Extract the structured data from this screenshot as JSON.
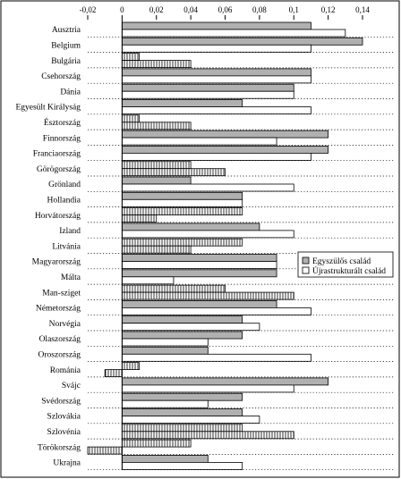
{
  "chart_data": {
    "type": "bar",
    "orientation": "horizontal",
    "title": "",
    "xlabel": "",
    "ylabel": "",
    "xlim": [
      -0.02,
      0.14
    ],
    "x_ticks": [
      -0.02,
      0,
      0.02,
      0.04,
      0.06,
      0.08,
      0.1,
      0.12,
      0.14
    ],
    "x_tick_labels": [
      "-0,02",
      "0",
      "0,02",
      "0,04",
      "0,06",
      "0,08",
      "0,1",
      "0,12",
      "0,14"
    ],
    "x_axis_position": "top",
    "grid": false,
    "legend_position": "right",
    "categories": [
      "Ausztria",
      "Belgium",
      "Bulgária",
      "Csehország",
      "Dánia",
      "Egyesült Királyság",
      "Észtország",
      "Finnország",
      "Franciaország",
      "Görögország",
      "Grönland",
      "Hollandia",
      "Horvátország",
      "Izland",
      "Litvánia",
      "Magyarország",
      "Málta",
      "Man-sziget",
      "Németország",
      "Norvégia",
      "Olaszország",
      "Oroszország",
      "Románia",
      "Svájc",
      "Svédország",
      "Szlovákia",
      "Szlovénia",
      "Törökország",
      "Ukrajna"
    ],
    "series": [
      {
        "name": "Egyszülős család",
        "fill": "#b0b0b0",
        "values": [
          0.11,
          0.14,
          0.01,
          0.11,
          0.1,
          0.07,
          0.01,
          0.12,
          0.12,
          0.04,
          0.04,
          0.07,
          0.07,
          0.08,
          0.07,
          0.09,
          0.09,
          0.06,
          0.09,
          0.07,
          0.07,
          0.05,
          0.01,
          0.12,
          0.07,
          0.07,
          0.07,
          0.04,
          0.05
        ]
      },
      {
        "name": "Újrastrukturált család",
        "fill": "#ffffff",
        "values": [
          0.13,
          0.11,
          0.04,
          0.11,
          0.1,
          0.11,
          0.04,
          0.09,
          0.11,
          0.06,
          0.1,
          0.07,
          0.02,
          0.1,
          0.04,
          0.09,
          0.03,
          0.1,
          0.11,
          0.08,
          0.05,
          0.11,
          -0.01,
          0.1,
          0.05,
          0.08,
          0.1,
          -0.02,
          0.07
        ]
      }
    ],
    "hatched_bars": [
      "Bulgária",
      "Észtország",
      "Görögország",
      "Horvátország",
      "Litvánia",
      "Man-sziget",
      "Románia",
      "Szlovénia",
      "Törökország"
    ],
    "hatch_style": "vertical-lines",
    "colors": {
      "series1": "#b0b0b0",
      "series2": "#ffffff",
      "stroke": "#000000"
    }
  }
}
